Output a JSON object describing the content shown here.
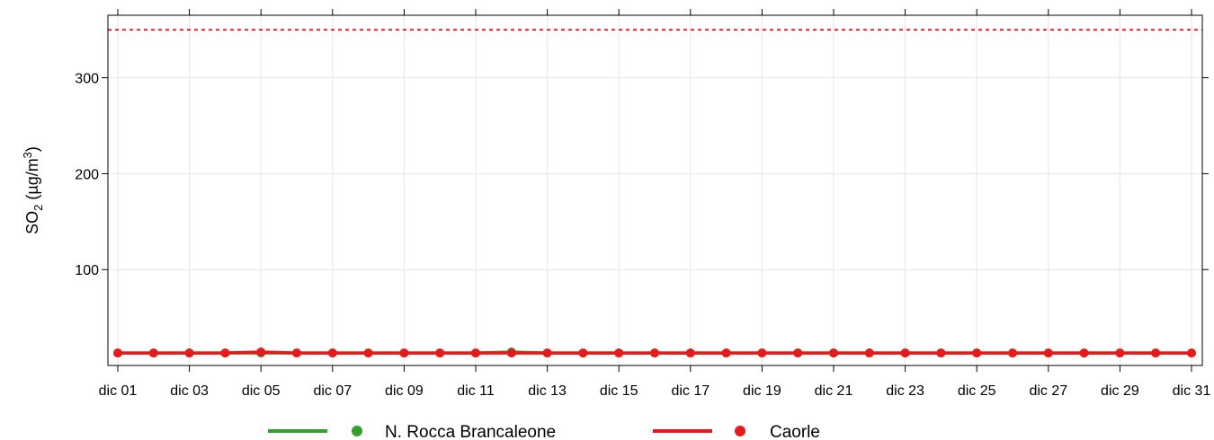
{
  "chart_data": {
    "type": "line",
    "ylabel": {
      "prefix": "SO",
      "prefix_sub": "2",
      "unit_open": " (µg/m",
      "unit_sup": "3",
      "unit_close": ")"
    },
    "ylim": [
      0,
      350
    ],
    "yticks": [
      100,
      200,
      300
    ],
    "x": [
      "dic 01",
      "dic 02",
      "dic 03",
      "dic 04",
      "dic 05",
      "dic 06",
      "dic 07",
      "dic 08",
      "dic 09",
      "dic 10",
      "dic 11",
      "dic 12",
      "dic 13",
      "dic 14",
      "dic 15",
      "dic 16",
      "dic 17",
      "dic 18",
      "dic 19",
      "dic 20",
      "dic 21",
      "dic 22",
      "dic 23",
      "dic 24",
      "dic 25",
      "dic 26",
      "dic 27",
      "dic 28",
      "dic 29",
      "dic 30",
      "dic 31"
    ],
    "xtick_labels": [
      "dic 01",
      "dic 03",
      "dic 05",
      "dic 07",
      "dic 09",
      "dic 11",
      "dic 13",
      "dic 15",
      "dic 17",
      "dic 19",
      "dic 21",
      "dic 23",
      "dic 25",
      "dic 27",
      "dic 29",
      "dic 31"
    ],
    "grid": true,
    "reference_line": {
      "value": 350,
      "color": "#e41a1c",
      "style": "dashed"
    },
    "legend_position": "bottom",
    "series": [
      {
        "name": "N. Rocca Brancaleone",
        "color": "#33a02c",
        "values": [
          13,
          13,
          13,
          13,
          13,
          13,
          13,
          13,
          13,
          13,
          13,
          14,
          13,
          13,
          13,
          13,
          13,
          13,
          13,
          13,
          13,
          13,
          13,
          13,
          13,
          13,
          13,
          13,
          13,
          13,
          13
        ]
      },
      {
        "name": "Caorle",
        "color": "#e41a1c",
        "values": [
          13,
          13,
          13,
          13,
          14,
          13,
          13,
          13,
          13,
          13,
          13,
          13,
          13,
          13,
          13,
          13,
          13,
          13,
          13,
          13,
          13,
          13,
          13,
          13,
          13,
          13,
          13,
          13,
          13,
          13,
          13
        ]
      }
    ]
  }
}
